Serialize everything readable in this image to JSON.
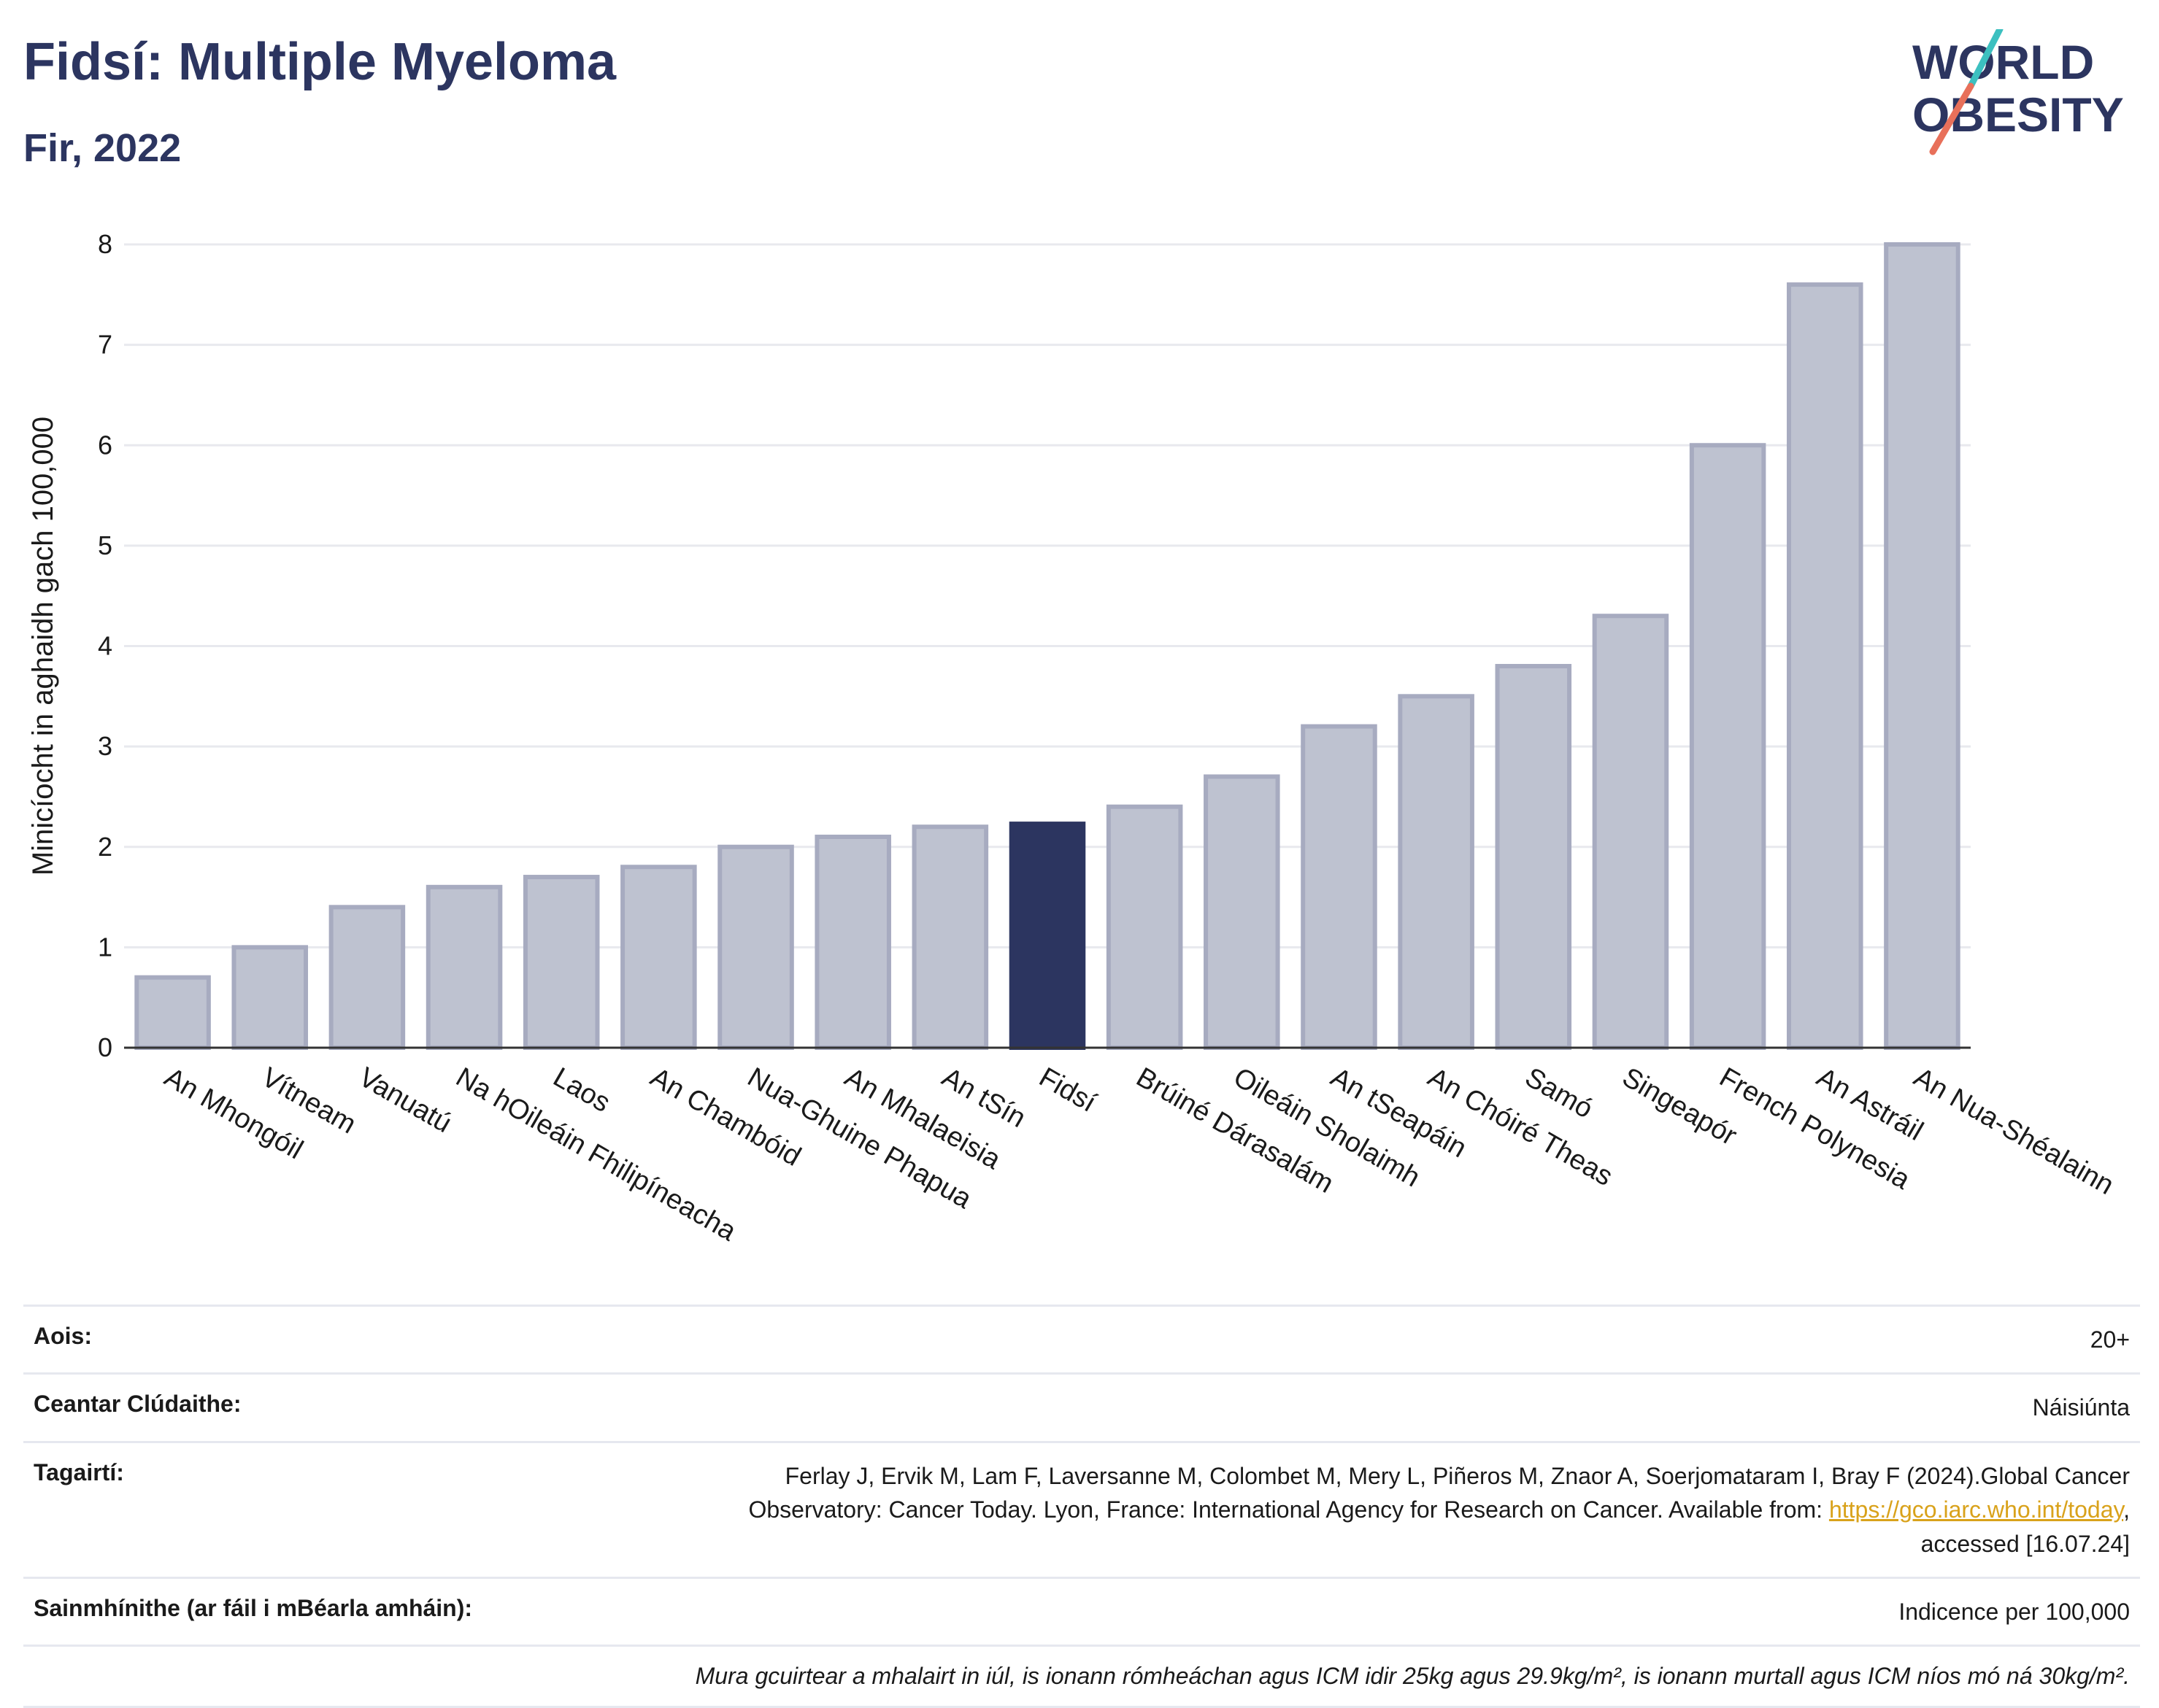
{
  "title": "Fidsí: Multiple Myeloma",
  "subtitle": "Fir, 2022",
  "logo": {
    "line1": "WORLD",
    "line2": "OBESITY"
  },
  "colors": {
    "highlight": "#2c3560",
    "bar": "#bec2d0",
    "bar_edge": "#a7abc0",
    "grid": "#e8e9ee",
    "brand": "#2c3560",
    "accent_teal": "#3cc0c0",
    "accent_coral": "#e8705a"
  },
  "chart_data": {
    "type": "bar",
    "ylabel": "Minicíocht in aghaidh gach 100,000",
    "ylim": [
      0,
      8
    ],
    "yticks": [
      0,
      1,
      2,
      3,
      4,
      5,
      6,
      7,
      8
    ],
    "highlight": "Fidsí",
    "categories": [
      "An Mhongóil",
      "Vítneam",
      "Vanuatú",
      "Na hOileáin Fhilipíneacha",
      "Laos",
      "An Chambóid",
      "Nua-Ghuine Phapua",
      "An Mhalaeisia",
      "An tSín",
      "Fidsí",
      "Brúiné Dárasalám",
      "Oileáin Sholaimh",
      "An tSeapáin",
      "An Chóiré Theas",
      "Samó",
      "Singeapór",
      "French Polynesia",
      "An Astráil",
      "An Nua-Shéalainn"
    ],
    "values": [
      0.7,
      1.0,
      1.4,
      1.6,
      1.7,
      1.8,
      2.0,
      2.1,
      2.2,
      2.23,
      2.4,
      2.7,
      3.2,
      3.5,
      3.8,
      4.3,
      6.0,
      7.6,
      8.0
    ]
  },
  "meta": {
    "age_label": "Aois:",
    "age_value": "20+",
    "coverage_label": "Ceantar Clúdaithe:",
    "coverage_value": "Náisiúnta",
    "refs_label": "Tagairtí:",
    "refs_line1": "Ferlay J, Ervik M, Lam F, Laversanne M, Colombet M, Mery L, Piñeros M, Znaor A, Soerjomataram I, Bray F (2024).Global Cancer",
    "refs_line2": "Observatory: Cancer Today. Lyon, France: International Agency for Research on Cancer. Available from: ",
    "refs_link": "https://gco.iarc.who.int/today",
    "refs_line2_end": ",",
    "refs_line3": "accessed [16.07.24]",
    "def_label": "Sainmhínithe (ar fáil i mBéarla amháin):",
    "def_value": "Indicence per 100,000",
    "note": "Mura gcuirtear a mhalairt in iúl, is ionann rómheáchan agus ICM idir 25kg agus 29.9kg/m², is ionann murtall agus ICM níos mó ná 30kg/m²."
  }
}
